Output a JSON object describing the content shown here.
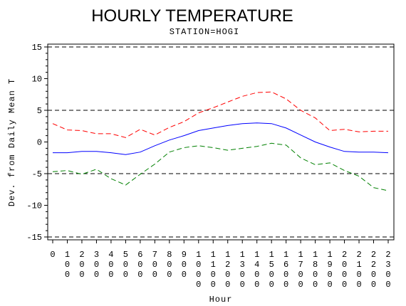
{
  "chart_data": {
    "type": "line",
    "title": "HOURLY TEMPERATURE",
    "subtitle": "STATION=HOGI",
    "xlabel": "Hour",
    "ylabel": "Dev. from Daily Mean T",
    "ylim": [
      -15,
      15
    ],
    "yticks": [
      -15,
      -10,
      -5,
      0,
      5,
      10,
      15
    ],
    "reference_lines": [
      -15,
      -5,
      5,
      15
    ],
    "x": [
      0,
      100,
      200,
      300,
      400,
      500,
      600,
      700,
      800,
      900,
      1000,
      1100,
      1200,
      1300,
      1400,
      1500,
      1600,
      1700,
      1800,
      1900,
      2000,
      2100,
      2200,
      2300
    ],
    "x_tick_labels": [
      "0",
      "100",
      "200",
      "300",
      "400",
      "500",
      "600",
      "700",
      "800",
      "900",
      "1000",
      "1100",
      "1200",
      "1300",
      "1400",
      "1500",
      "1600",
      "1700",
      "1800",
      "1900",
      "2000",
      "2100",
      "2200",
      "2300"
    ],
    "series": [
      {
        "color": "#ff0000",
        "style": "dashed",
        "values": [
          2.9,
          1.9,
          1.8,
          1.3,
          1.3,
          0.7,
          2.0,
          1.1,
          2.3,
          3.2,
          4.6,
          5.4,
          6.3,
          7.2,
          7.8,
          7.9,
          6.8,
          5.0,
          3.8,
          1.8,
          2.0,
          1.6,
          1.7,
          1.7
        ]
      },
      {
        "color": "#0000ff",
        "style": "solid",
        "values": [
          -1.7,
          -1.7,
          -1.5,
          -1.5,
          -1.7,
          -2.0,
          -1.6,
          -0.6,
          0.3,
          1.0,
          1.8,
          2.2,
          2.6,
          2.9,
          3.0,
          2.9,
          2.2,
          1.1,
          0.0,
          -0.8,
          -1.5,
          -1.6,
          -1.6,
          -1.7
        ]
      },
      {
        "color": "#008000",
        "style": "dashed",
        "values": [
          -4.7,
          -4.5,
          -5.1,
          -4.3,
          -5.8,
          -6.8,
          -5.1,
          -3.5,
          -1.6,
          -0.9,
          -0.6,
          -0.9,
          -1.3,
          -1.0,
          -0.7,
          -0.2,
          -0.5,
          -2.5,
          -3.6,
          -3.3,
          -4.5,
          -5.4,
          -7.2,
          -7.7
        ]
      }
    ]
  }
}
